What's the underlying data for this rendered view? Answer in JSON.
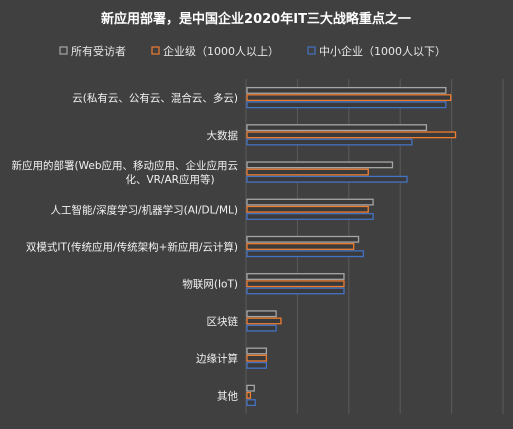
{
  "chart_data": {
    "type": "bar",
    "orientation": "horizontal",
    "title": "新应用部署，是中国企业2020年IT三大战略重点之一",
    "categories": [
      "云(私有云、公有云、混合云、多云)",
      "大数据",
      "新应用的部署(Web应用、移动应用、企业应用云化、VR/AR应用等)",
      "人工智能/深度学习/机器学习(AI/DL/ML)",
      "双模式IT(传统应用/传统架构+新应用/云计算)",
      "物联网(IoT)",
      "区块链",
      "边缘计算",
      "其他"
    ],
    "category_lines": [
      [
        "云(私有云、公有云、混合云、多云)"
      ],
      [
        "大数据"
      ],
      [
        "新应用的部署(Web应用、移动应用、企业应用云",
        "化、VR/AR应用等)"
      ],
      [
        "人工智能/深度学习/机器学习(AI/DL/ML)"
      ],
      [
        "双模式IT(传统应用/传统架构+新应用/云计算)"
      ],
      [
        "物联网(IoT)"
      ],
      [
        "区块链"
      ],
      [
        "边缘计算"
      ],
      [
        "其他"
      ]
    ],
    "series": [
      {
        "name": "所有受访者",
        "color": "#a6a6a6",
        "values": [
          41,
          37,
          30,
          26,
          23,
          20,
          6,
          4,
          1.5
        ]
      },
      {
        "name": "企业级（1000人以上）",
        "color": "#ed7d31",
        "values": [
          42,
          43,
          25,
          25,
          22,
          20,
          7,
          4,
          0.7
        ]
      },
      {
        "name": "中小企业（1000人以下）",
        "color": "#4472c4",
        "values": [
          41,
          34,
          33,
          26,
          24,
          20,
          6,
          4,
          1.7
        ]
      }
    ],
    "xlim": [
      0,
      53
    ],
    "grid": true,
    "legend_position": "top"
  }
}
